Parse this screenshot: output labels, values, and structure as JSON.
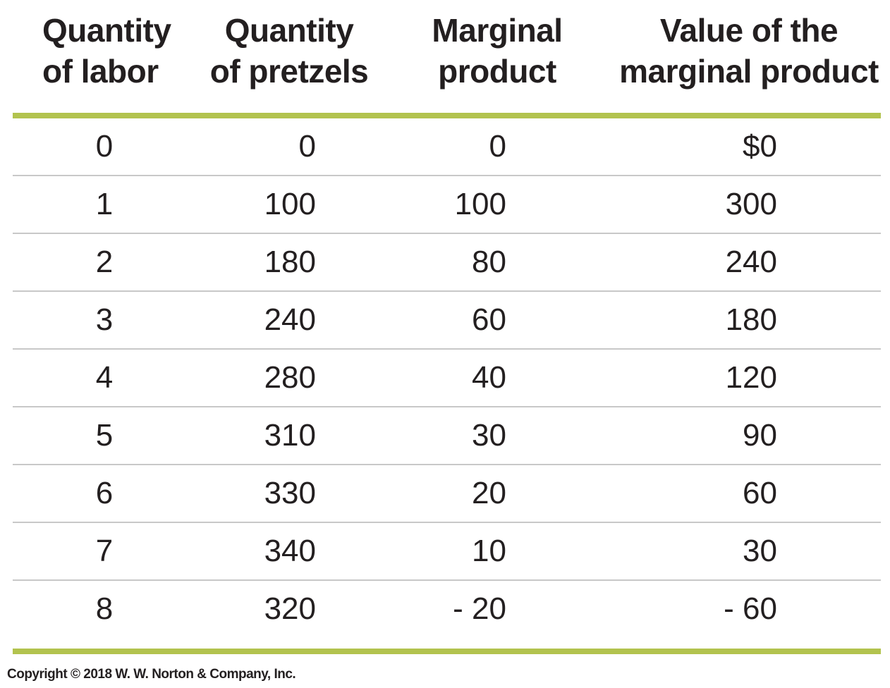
{
  "table": {
    "headers": [
      "Quantity\nof labor",
      "Quantity\nof pretzels",
      "Marginal\nproduct",
      "Value of the\nmarginal product"
    ],
    "rows": [
      [
        "0",
        "0",
        "0",
        "$0"
      ],
      [
        "1",
        "100",
        "100",
        "300"
      ],
      [
        "2",
        "180",
        "80",
        "240"
      ],
      [
        "3",
        "240",
        "60",
        "180"
      ],
      [
        "4",
        "280",
        "40",
        "120"
      ],
      [
        "5",
        "310",
        "30",
        "90"
      ],
      [
        "6",
        "330",
        "20",
        "60"
      ],
      [
        "7",
        "340",
        "10",
        "30"
      ],
      [
        "8",
        "320",
        "- 20",
        "- 60"
      ]
    ]
  },
  "footer": {
    "copyright": "Copyright © 2018 W. W. Norton & Company, Inc."
  },
  "colors": {
    "accent_rule": "#b2c34e",
    "row_divider": "#c8c8c8",
    "text": "#231f20"
  }
}
